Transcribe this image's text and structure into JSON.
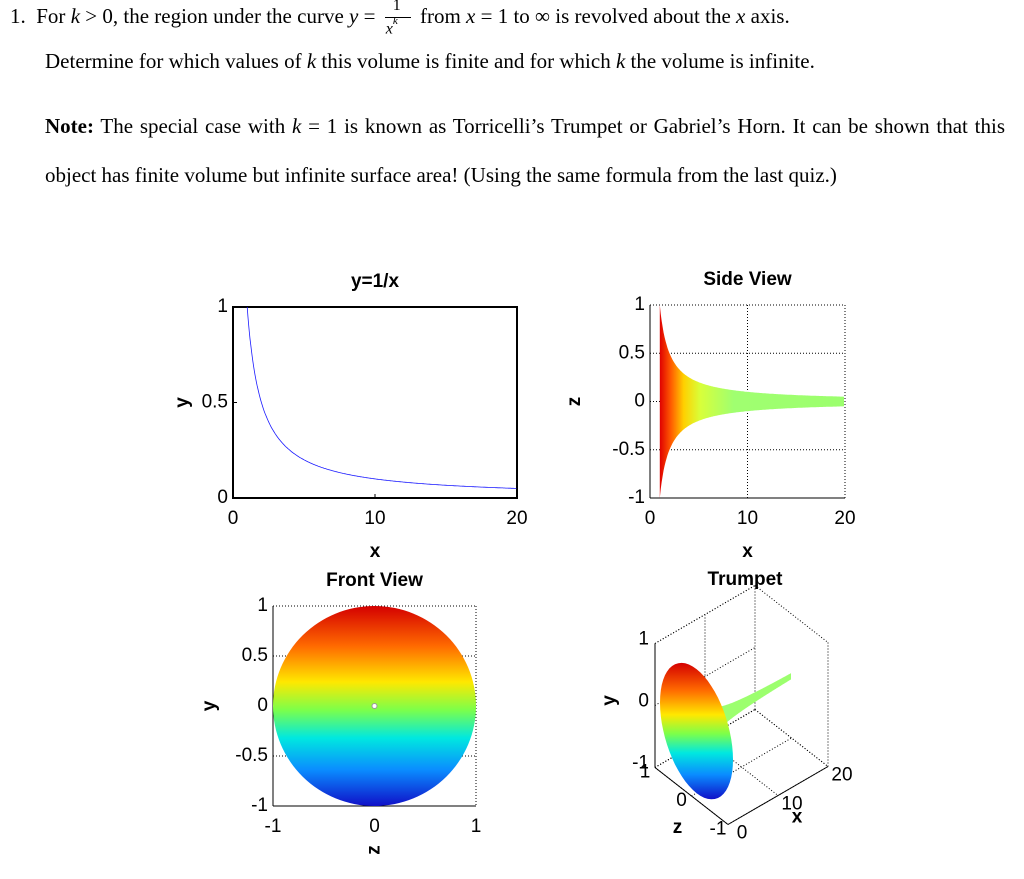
{
  "question": {
    "number": "1.",
    "line1": [
      "For",
      "k",
      "> 0, the region under the curve",
      "y",
      "=",
      "1",
      "x",
      "k",
      "from",
      "x",
      "= 1 to ∞ is revolved about the",
      "x",
      "axis."
    ],
    "line2": [
      "Determine for which values of",
      "k",
      "this volume is finite and for which",
      "k",
      "the volume is infinite."
    ]
  },
  "note": {
    "label": "Note:",
    "parts": [
      "The special case with",
      "k",
      "= 1 is known as Torricelli’s Trumpet or Gabriel’s Horn.  It can be shown that this object has finite volume but infinite surface area! (Using the same formula from the last quiz.)"
    ]
  },
  "figures": [
    {
      "title": "y=1/x",
      "xlabel": "x",
      "ylabel": "y",
      "xlim": [
        0,
        20
      ],
      "ylim": [
        0,
        1
      ],
      "xticks": [
        0,
        10,
        20
      ],
      "yticks": [
        0,
        0.5,
        1
      ],
      "grid": false
    },
    {
      "title": "Side View",
      "xlabel": "x",
      "ylabel": "z",
      "xlim": [
        0,
        20
      ],
      "ylim": [
        -1,
        1
      ],
      "xticks": [
        0,
        10,
        20
      ],
      "yticks": [
        -1,
        -0.5,
        0,
        0.5,
        1
      ],
      "grid": true
    },
    {
      "title": "Front View",
      "xlabel": "z",
      "ylabel": "y",
      "xlim": [
        -1,
        1
      ],
      "ylim": [
        -1,
        1
      ],
      "xticks": [
        -1,
        0,
        1
      ],
      "yticks": [
        -1,
        -0.5,
        0,
        0.5,
        1
      ],
      "grid": true
    },
    {
      "title": "Trumpet",
      "xlabel": "x",
      "ylabel": "y",
      "zlabel": "z",
      "xlim": [
        0,
        20
      ],
      "ylim": [
        -1,
        1
      ],
      "zlim": [
        -1,
        1
      ],
      "xticks": [
        0,
        10,
        20
      ],
      "yticks": [
        -1,
        0,
        1
      ],
      "zticks": [
        -1,
        0,
        1
      ],
      "grid": true
    }
  ]
}
